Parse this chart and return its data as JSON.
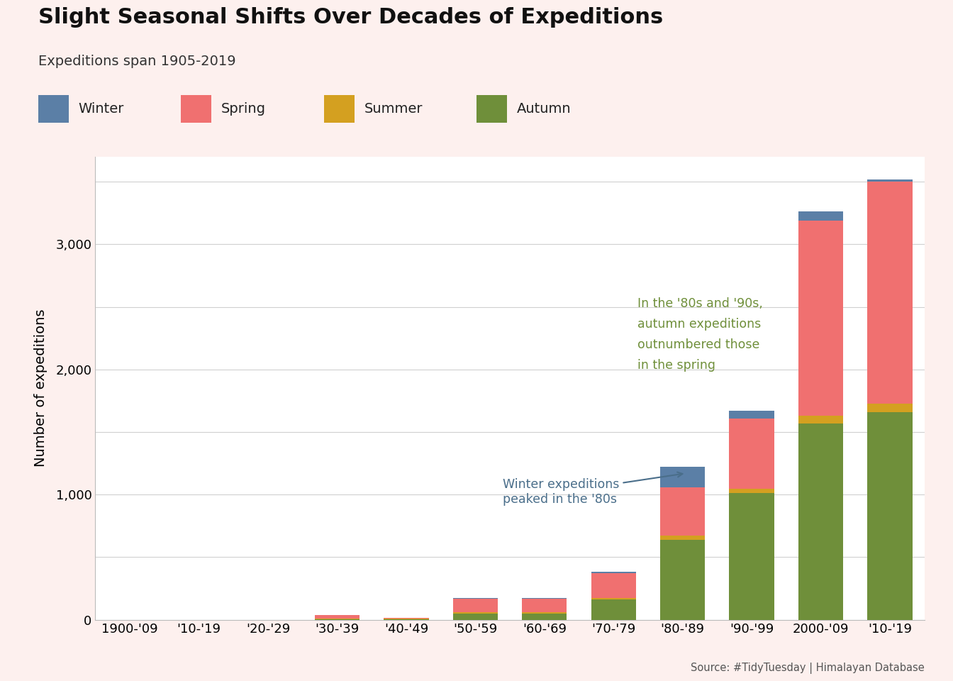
{
  "categories": [
    "1900-'09",
    "'10-'19",
    "'20-'29",
    "'30-'39",
    "'40-'49",
    "'50-'59",
    "'60-'69",
    "'70-'79",
    "'80-'89",
    "'90-'99",
    "2000-'09",
    "'10-'19"
  ],
  "seasons_order": [
    "Autumn",
    "Summer",
    "Spring",
    "Winter"
  ],
  "colors": {
    "Winter": "#5b7fa6",
    "Spring": "#f07070",
    "Summer": "#d4a020",
    "Autumn": "#6f8f3a"
  },
  "data": {
    "Winter": [
      0,
      0,
      0,
      2,
      2,
      8,
      8,
      12,
      160,
      65,
      70,
      20
    ],
    "Spring": [
      0,
      0,
      0,
      28,
      8,
      108,
      108,
      200,
      390,
      560,
      1560,
      1775
    ],
    "Summer": [
      0,
      0,
      0,
      2,
      2,
      8,
      8,
      12,
      30,
      35,
      60,
      65
    ],
    "Autumn": [
      0,
      0,
      0,
      5,
      5,
      50,
      50,
      160,
      640,
      1010,
      1570,
      1660
    ]
  },
  "title": "Slight Seasonal Shifts Over Decades of Expeditions",
  "subtitle": "Expeditions span 1905-2019",
  "ylabel": "Number of expeditions",
  "source": "Source: #TidyTuesday | Himalayan Database",
  "ylim": [
    0,
    3700
  ],
  "ytick_labels": [
    "0",
    "1,000",
    "2,000",
    "3,000"
  ],
  "ytick_vals": [
    0,
    1000,
    2000,
    3000
  ],
  "ygrid_vals": [
    0,
    500,
    1000,
    1500,
    2000,
    2500,
    3000,
    3500
  ],
  "background_color": "#fdf0ee",
  "plot_bg_color": "#ffffff",
  "title_fontsize": 22,
  "subtitle_fontsize": 14,
  "legend_fontsize": 14,
  "tick_fontsize": 13,
  "ylabel_fontsize": 14,
  "annotation_winter_text": "Winter expeditions\npeaked in the '80s",
  "annotation_winter_color": "#4a6e8a",
  "annotation_autumn_text": "In the '80s and '90s,\nautumn expeditions\noutnumbered those\nin the spring",
  "annotation_autumn_color": "#6f8f3a"
}
